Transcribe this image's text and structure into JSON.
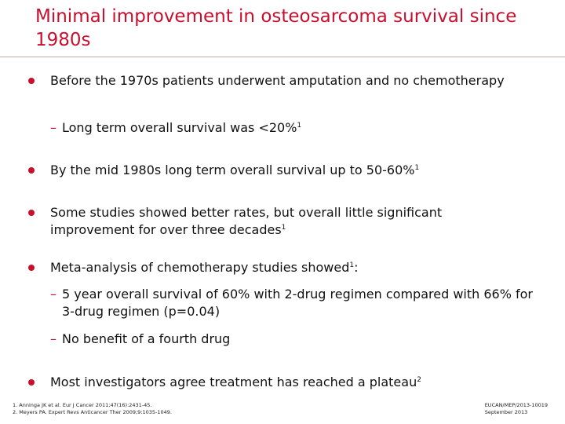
{
  "slide": {
    "title": "Minimal improvement in osteosarcoma survival since 1980s",
    "colors": {
      "accent": "#c8102e",
      "text": "#111111"
    },
    "bullets": [
      {
        "text": "Before the 1970s patients underwent amputation and no chemotherapy",
        "sup": "",
        "subs": [
          {
            "text": "Long term overall survival was <20%",
            "sup": "1"
          }
        ]
      },
      {
        "text": "By the mid 1980s long term overall survival up to 50-60%",
        "sup": "1",
        "subs": []
      },
      {
        "text": "Some studies showed better rates, but overall little significant improvement for over three decades",
        "sup": "1",
        "subs": []
      },
      {
        "text": "Meta-analysis of chemotherapy studies showed",
        "sup": "1",
        "suffix": ":",
        "subs": [
          {
            "text": "5 year overall survival of 60% with 2-drug regimen compared with 66% for 3-drug regimen (p=0.04)",
            "sup": ""
          },
          {
            "text": "No benefit of a fourth drug",
            "sup": ""
          }
        ]
      },
      {
        "text": "Most investigators agree treatment has reached a plateau",
        "sup": "2",
        "subs": []
      }
    ],
    "dash_glyph": "–",
    "references": [
      "1. Anninga JK et al. Eur J Cancer 2011;47(16):2431-45.",
      "2. Meyers PA. Expert Revs Anticancer Ther 2009;9:1035-1049."
    ],
    "footer_code": {
      "line1": "EUCAN/MEP/2013-10019",
      "line2": "September 2013"
    }
  }
}
